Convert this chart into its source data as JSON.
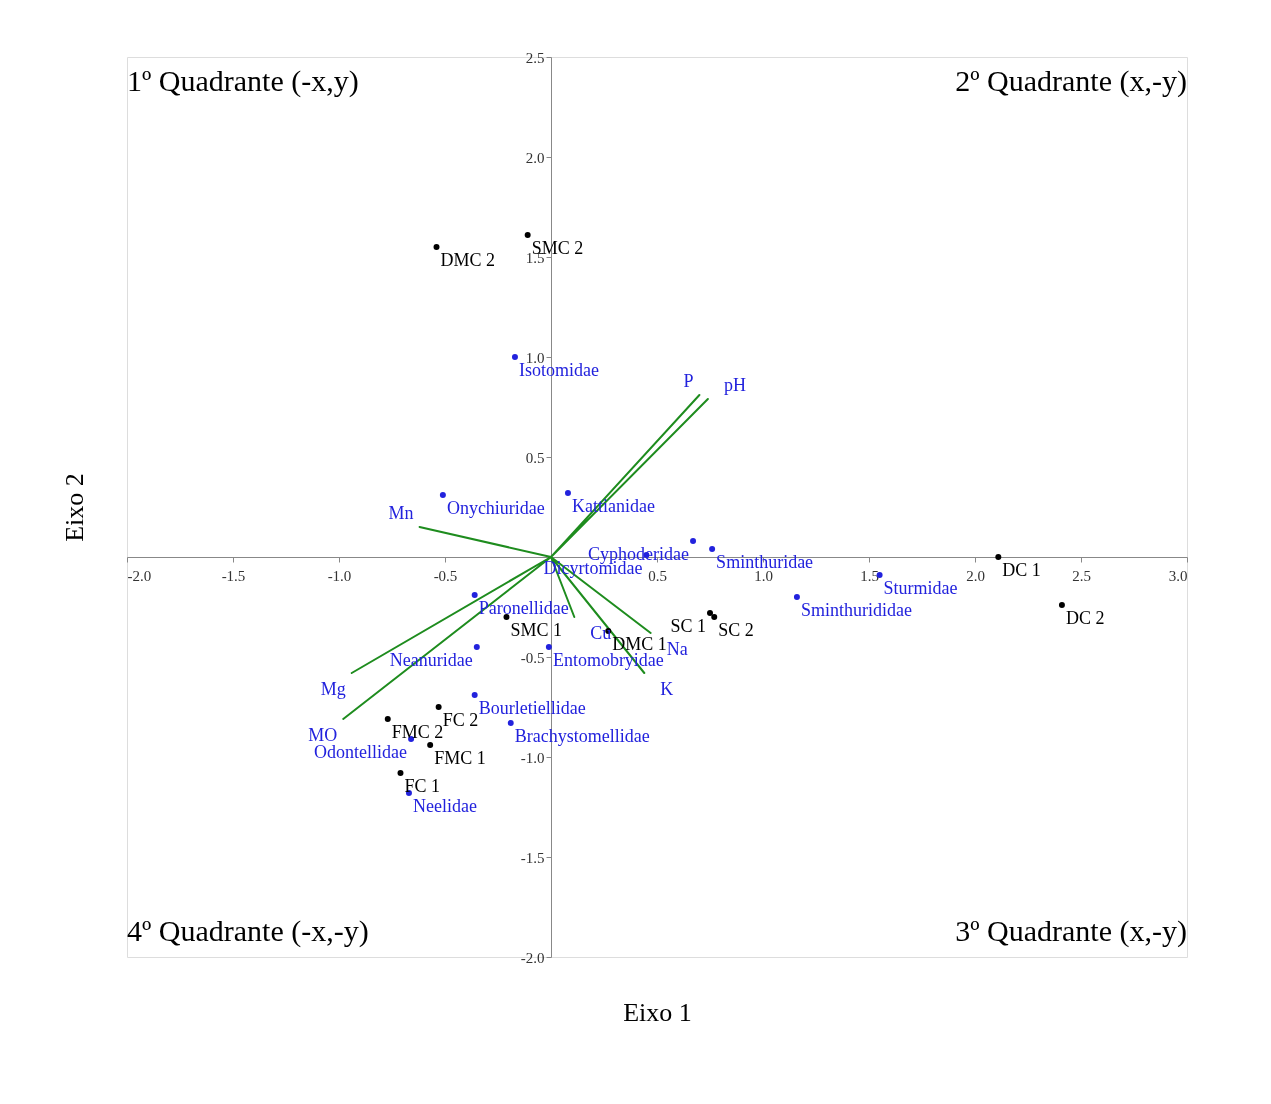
{
  "chart_data": {
    "type": "scatter",
    "xlabel": "Eixo 1",
    "ylabel": "Eixo 2",
    "marker": "circle",
    "xlim": [
      -2,
      3
    ],
    "ylim": [
      -2,
      2.5
    ],
    "xticks": [
      {
        "value": -2,
        "label": "-2.0"
      },
      {
        "value": -1.5,
        "label": "-1.5"
      },
      {
        "value": -1,
        "label": "-1.0"
      },
      {
        "value": -0.5,
        "label": "-0.5"
      },
      {
        "value": 0.5,
        "label": "0.5"
      },
      {
        "value": 1,
        "label": "1.0"
      },
      {
        "value": 1.5,
        "label": "1.5"
      },
      {
        "value": 2,
        "label": "2.0"
      },
      {
        "value": 2.5,
        "label": "2.5"
      },
      {
        "value": 3,
        "label": "3.0"
      }
    ],
    "yticks": [
      {
        "value": -2,
        "label": "-2.0"
      },
      {
        "value": -1.5,
        "label": "-1.5"
      },
      {
        "value": -1,
        "label": "-1.0"
      },
      {
        "value": -0.5,
        "label": "-0.5"
      },
      {
        "value": 0.5,
        "label": "0.5"
      },
      {
        "value": 1,
        "label": "1.0"
      },
      {
        "value": 1.5,
        "label": "1.5"
      },
      {
        "value": 2,
        "label": "2.0"
      },
      {
        "value": 2.5,
        "label": "2.5"
      }
    ],
    "series": [
      {
        "type": "scatter",
        "color": "#000000",
        "x": [
          -0.54,
          -0.11,
          -0.21,
          0.27,
          0.75,
          0.77,
          2.11,
          2.41,
          -0.53,
          -0.77,
          -0.57,
          -0.71
        ],
        "values": [
          1.55,
          1.61,
          -0.3,
          -0.37,
          -0.28,
          -0.3,
          0.0,
          -0.24,
          -0.75,
          -0.81,
          -0.94,
          -1.08
        ]
      },
      {
        "type": "scatter",
        "color": "#2222dd",
        "x": [
          -0.17,
          -0.51,
          0.08,
          0.67,
          0.45,
          0.76,
          1.55,
          1.16,
          -0.36,
          -0.35,
          -0.01,
          -0.36,
          -0.19,
          -0.66,
          -0.67
        ],
        "values": [
          1.0,
          0.31,
          0.32,
          0.08,
          0.01,
          0.04,
          -0.09,
          -0.2,
          -0.19,
          -0.45,
          -0.45,
          -0.69,
          -0.83,
          -0.91,
          -1.18
        ]
      },
      {
        "type": "line",
        "marker": "none",
        "line_style": "solid",
        "color": "#1e8c1e",
        "x": [
          0,
          0.7,
          0,
          0.74,
          0,
          -0.62,
          0,
          -0.94,
          0,
          -0.98,
          0,
          0.11,
          0,
          0.47,
          0,
          0.44
        ],
        "values": [
          0,
          0.81,
          0,
          0.79,
          0,
          0.15,
          0,
          -0.58,
          0,
          -0.81,
          0,
          -0.3,
          0,
          -0.38,
          0,
          -0.58
        ]
      }
    ],
    "annotations": [
      "1º Quadrante (-x,y)",
      "2º Quadrante (x,-y)",
      "4º Quadrante (-x,-y)",
      "3º Quadrante (x,-y)",
      {
        "text": "DMC 2",
        "x": -0.54,
        "y": 1.55
      },
      {
        "text": "SMC 2",
        "x": -0.11,
        "y": 1.61
      },
      {
        "text": "SMC 1",
        "x": -0.21,
        "y": -0.3
      },
      {
        "text": "DMC 1",
        "x": 0.27,
        "y": -0.37
      },
      {
        "text": "SC 1",
        "x": 0.75,
        "y": -0.28
      },
      {
        "text": "SC 2",
        "x": 0.77,
        "y": -0.3
      },
      {
        "text": "DC 1",
        "x": 2.11,
        "y": 0.0
      },
      {
        "text": "DC 2",
        "x": 2.41,
        "y": -0.24
      },
      {
        "text": "FC 2",
        "x": -0.53,
        "y": -0.75
      },
      {
        "text": "FMC 2",
        "x": -0.77,
        "y": -0.81
      },
      {
        "text": "FMC 1",
        "x": -0.57,
        "y": -0.94
      },
      {
        "text": "FC 1",
        "x": -0.71,
        "y": -1.08
      },
      {
        "text": "Isotomidae",
        "x": -0.17,
        "y": 1.0
      },
      {
        "text": "Onychiuridae",
        "x": -0.51,
        "y": 0.31
      },
      {
        "text": "Kattianidae",
        "x": 0.08,
        "y": 0.32
      },
      {
        "text": "Cyphoderidae",
        "x": 0.67,
        "y": 0.08
      },
      {
        "text": "Dicyrtomidae",
        "x": 0.45,
        "y": 0.01
      },
      {
        "text": "Sminthuridae",
        "x": 0.76,
        "y": 0.04
      },
      {
        "text": "Sturmidae",
        "x": 1.55,
        "y": -0.09
      },
      {
        "text": "Sminthurididae",
        "x": 1.16,
        "y": -0.2
      },
      {
        "text": "Paronellidae",
        "x": -0.36,
        "y": -0.19
      },
      {
        "text": "Neanuridae",
        "x": -0.35,
        "y": -0.45
      },
      {
        "text": "Entomobryidae",
        "x": -0.01,
        "y": -0.45
      },
      {
        "text": "Bourletiellidae",
        "x": -0.36,
        "y": -0.69
      },
      {
        "text": "Brachystomellidae",
        "x": -0.19,
        "y": -0.83
      },
      {
        "text": "Odontellidae",
        "x": -0.66,
        "y": -0.91
      },
      {
        "text": "Neelidae",
        "x": -0.67,
        "y": -1.18
      },
      {
        "text": "P",
        "x": 0.7,
        "y": 0.81
      },
      {
        "text": "pH",
        "x": 0.74,
        "y": 0.79
      },
      {
        "text": "Mn",
        "x": -0.62,
        "y": 0.15
      },
      {
        "text": "Mg",
        "x": -0.94,
        "y": -0.58
      },
      {
        "text": "MO",
        "x": -0.98,
        "y": -0.81
      },
      {
        "text": "Cu",
        "x": 0.11,
        "y": -0.3
      },
      {
        "text": "Na",
        "x": 0.47,
        "y": -0.38
      },
      {
        "text": "K",
        "x": 0.44,
        "y": -0.58
      }
    ]
  }
}
